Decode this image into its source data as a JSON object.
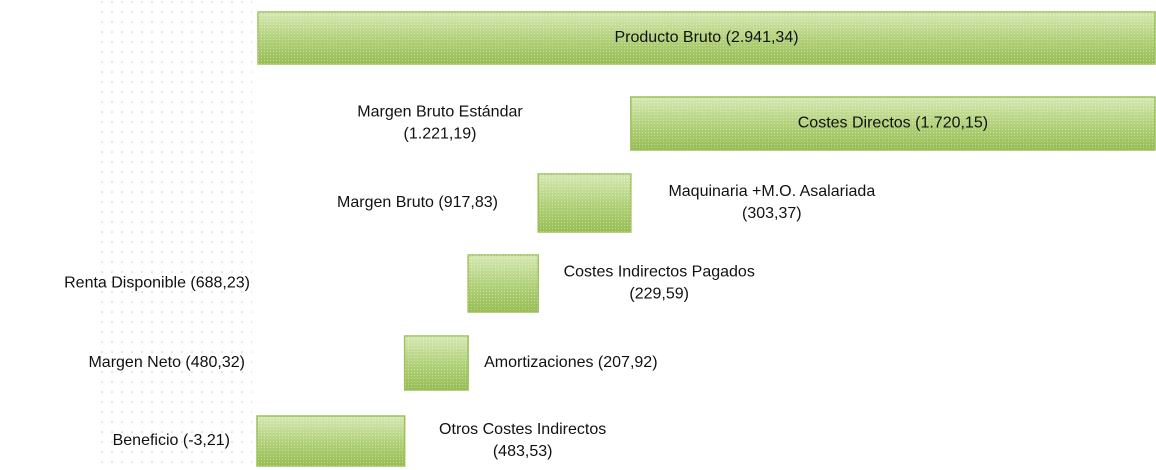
{
  "chart_data": {
    "type": "waterfall",
    "color": "#9cc05a",
    "items": [
      {
        "label": [
          "Producto Bruto (2.941,34)"
        ],
        "value": 2941.34
      },
      {
        "label": [
          "Costes Directos (1.720,15)"
        ],
        "value": 1720.15
      },
      {
        "label": [
          "Maquinaria +M.O. Asalariada",
          "(303,37)"
        ],
        "value": 303.37
      },
      {
        "label": [
          "Costes Indirectos Pagados",
          "(229,59)"
        ],
        "value": 229.59
      },
      {
        "label": [
          "Amortizaciones (207,92)"
        ],
        "value": 207.92
      },
      {
        "label": [
          "Otros Costes Indirectos",
          "(483,53)"
        ],
        "value": 483.53
      }
    ],
    "results": [
      {
        "label": [
          "Margen Bruto Estándar",
          "(1.221,19)"
        ],
        "value": 1221.19
      },
      {
        "label": [
          "Margen Bruto (917,83)"
        ],
        "value": 917.83
      },
      {
        "label": [
          "Renta Disponible (688,23)"
        ],
        "value": 688.23
      },
      {
        "label": [
          "Margen Neto (480,32)"
        ],
        "value": 480.32
      },
      {
        "label": [
          "Beneficio (-3,21)"
        ],
        "value": -3.21
      }
    ]
  }
}
